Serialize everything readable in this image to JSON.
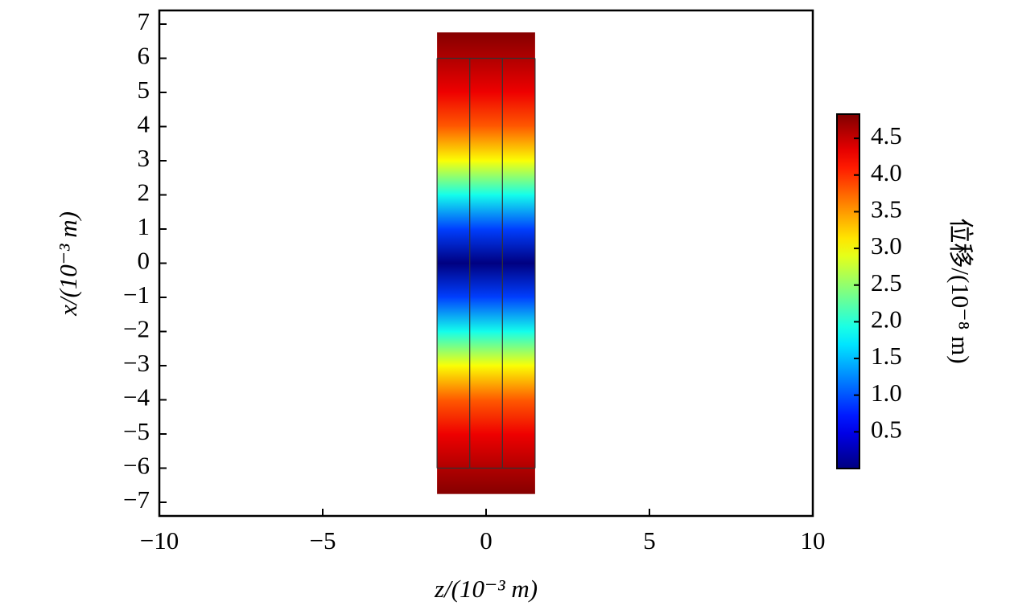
{
  "chart_data": {
    "type": "heatmap",
    "xlabel": "z/(10⁻³ m)",
    "ylabel": "x/(10⁻³ m)",
    "colorbar_label": "位移/(10⁻⁸ m)",
    "colormap": "jet",
    "xlim": [
      -10,
      10
    ],
    "xticks": [
      {
        "value": -10,
        "label": "−10"
      },
      {
        "value": -5,
        "label": "−5"
      },
      0,
      5,
      10
    ],
    "ylim": [
      -7.4,
      7.4
    ],
    "yticks": [
      {
        "value": -7,
        "label": "−7"
      },
      {
        "value": -6,
        "label": "−6"
      },
      {
        "value": -5,
        "label": "−5"
      },
      {
        "value": -4,
        "label": "−4"
      },
      {
        "value": -3,
        "label": "−3"
      },
      {
        "value": -2,
        "label": "−2"
      },
      {
        "value": -1,
        "label": "−1"
      },
      0,
      1,
      2,
      3,
      4,
      5,
      6,
      7
    ],
    "clim": [
      0,
      4.83
    ],
    "cticks": [
      0.5,
      {
        "value": 1,
        "label": "1.0"
      },
      1.5,
      {
        "value": 2,
        "label": "2.0"
      },
      2.5,
      {
        "value": 3,
        "label": "3.0"
      },
      3.5,
      {
        "value": 4,
        "label": "4.0"
      },
      4.5
    ],
    "z_extent": [
      -1.5,
      1.5
    ],
    "mesh_z": [
      -0.5,
      0.5
    ],
    "mesh_x": [
      -6,
      6
    ],
    "x": [
      -6.75,
      -6,
      -5,
      -4,
      -3,
      -2,
      -1,
      0,
      1,
      2,
      3,
      4,
      5,
      6,
      6.75
    ],
    "values": [
      4.8,
      4.6,
      4.3,
      3.8,
      3.0,
      1.9,
      0.9,
      0,
      0.9,
      1.9,
      3.0,
      3.8,
      4.3,
      4.6,
      4.8
    ]
  }
}
